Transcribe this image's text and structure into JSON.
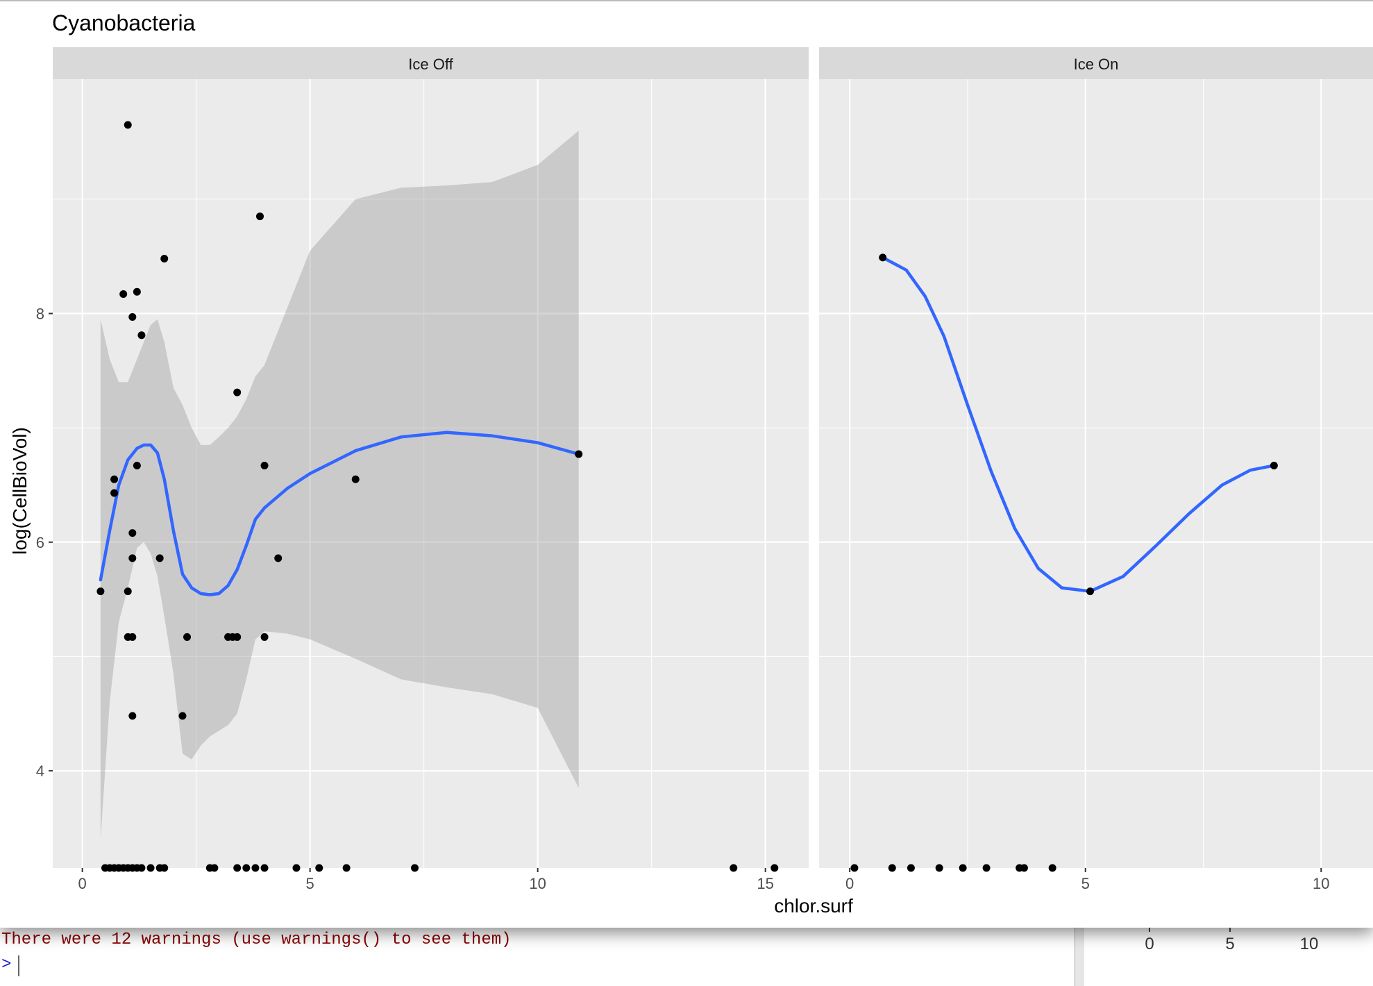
{
  "chart_data": {
    "type": "scatter",
    "title": "Cyanobacteria",
    "xlabel": "chlor.surf",
    "ylabel": "log(CellBioVol)",
    "ylim": [
      3.15,
      10.05
    ],
    "yticks": [
      4,
      6,
      8
    ],
    "xticks": [
      0,
      5,
      10,
      15
    ],
    "grid": true,
    "panels": [
      {
        "strip_label": "Ice Off",
        "xlim": [
          -0.65,
          15.95
        ],
        "xticks": [
          0,
          5,
          10,
          15
        ],
        "points": [
          [
            1.0,
            9.65
          ],
          [
            3.9,
            8.85
          ],
          [
            1.8,
            8.48
          ],
          [
            0.9,
            8.17
          ],
          [
            1.2,
            8.19
          ],
          [
            1.1,
            7.97
          ],
          [
            1.3,
            7.81
          ],
          [
            3.4,
            7.31
          ],
          [
            10.9,
            6.77
          ],
          [
            1.2,
            6.67
          ],
          [
            4.0,
            6.67
          ],
          [
            0.7,
            6.55
          ],
          [
            6.0,
            6.55
          ],
          [
            0.7,
            6.43
          ],
          [
            1.1,
            6.08
          ],
          [
            1.1,
            5.86
          ],
          [
            1.7,
            5.86
          ],
          [
            4.3,
            5.86
          ],
          [
            0.4,
            5.57
          ],
          [
            1.0,
            5.57
          ],
          [
            1.0,
            5.17
          ],
          [
            1.1,
            5.17
          ],
          [
            2.3,
            5.17
          ],
          [
            3.2,
            5.17
          ],
          [
            3.3,
            5.17
          ],
          [
            3.4,
            5.17
          ],
          [
            4.0,
            5.17
          ],
          [
            1.1,
            4.48
          ],
          [
            2.2,
            4.48
          ],
          [
            0.5,
            3.15
          ],
          [
            0.6,
            3.15
          ],
          [
            0.7,
            3.15
          ],
          [
            0.8,
            3.15
          ],
          [
            0.9,
            3.15
          ],
          [
            1.0,
            3.15
          ],
          [
            1.1,
            3.15
          ],
          [
            1.2,
            3.15
          ],
          [
            1.3,
            3.15
          ],
          [
            1.5,
            3.15
          ],
          [
            1.7,
            3.15
          ],
          [
            1.8,
            3.15
          ],
          [
            2.8,
            3.15
          ],
          [
            2.9,
            3.15
          ],
          [
            3.4,
            3.15
          ],
          [
            3.6,
            3.15
          ],
          [
            3.8,
            3.15
          ],
          [
            4.0,
            3.15
          ],
          [
            4.7,
            3.15
          ],
          [
            5.2,
            3.15
          ],
          [
            5.8,
            3.15
          ],
          [
            7.3,
            3.15
          ],
          [
            14.3,
            3.15
          ],
          [
            15.2,
            3.15
          ]
        ],
        "smooth": {
          "x": [
            0.4,
            0.6,
            0.8,
            1.0,
            1.2,
            1.35,
            1.5,
            1.65,
            1.8,
            2.0,
            2.2,
            2.4,
            2.6,
            2.8,
            3.0,
            3.2,
            3.4,
            3.6,
            3.8,
            4.0,
            4.5,
            5.0,
            6.0,
            7.0,
            8.0,
            9.0,
            10.0,
            10.9
          ],
          "y": [
            5.67,
            6.1,
            6.5,
            6.72,
            6.82,
            6.85,
            6.85,
            6.78,
            6.55,
            6.1,
            5.72,
            5.6,
            5.55,
            5.54,
            5.55,
            5.62,
            5.76,
            5.97,
            6.2,
            6.3,
            6.47,
            6.6,
            6.8,
            6.92,
            6.96,
            6.93,
            6.87,
            6.77
          ],
          "lower": [
            3.4,
            4.6,
            5.3,
            5.6,
            5.95,
            6.0,
            5.9,
            5.7,
            5.35,
            4.85,
            4.15,
            4.1,
            4.22,
            4.3,
            4.35,
            4.4,
            4.5,
            4.8,
            5.15,
            5.22,
            5.2,
            5.15,
            4.98,
            4.8,
            4.73,
            4.67,
            4.55,
            3.85
          ],
          "upper": [
            7.95,
            7.6,
            7.4,
            7.4,
            7.6,
            7.75,
            7.9,
            7.95,
            7.75,
            7.35,
            7.2,
            7.0,
            6.85,
            6.85,
            6.92,
            7.0,
            7.1,
            7.25,
            7.45,
            7.55,
            8.05,
            8.55,
            9.0,
            9.1,
            9.12,
            9.15,
            9.3,
            9.6
          ]
        }
      },
      {
        "strip_label": "Ice On",
        "xlim": [
          -0.65,
          11.1
        ],
        "xticks": [
          0,
          5,
          10
        ],
        "points": [
          [
            0.7,
            8.49
          ],
          [
            9.0,
            6.67
          ],
          [
            5.1,
            5.57
          ],
          [
            0.1,
            3.15
          ],
          [
            0.9,
            3.15
          ],
          [
            1.3,
            3.15
          ],
          [
            1.9,
            3.15
          ],
          [
            2.4,
            3.15
          ],
          [
            2.9,
            3.15
          ],
          [
            3.6,
            3.15
          ],
          [
            3.7,
            3.15
          ],
          [
            4.3,
            3.15
          ]
        ],
        "smooth": {
          "x": [
            0.7,
            1.2,
            1.6,
            2.0,
            2.5,
            3.0,
            3.5,
            4.0,
            4.5,
            5.1,
            5.8,
            6.5,
            7.2,
            7.9,
            8.5,
            9.0
          ],
          "y": [
            8.49,
            8.38,
            8.15,
            7.8,
            7.2,
            6.62,
            6.12,
            5.77,
            5.6,
            5.57,
            5.7,
            5.97,
            6.25,
            6.5,
            6.63,
            6.67
          ]
        }
      }
    ]
  },
  "console": {
    "warning_text": "There were 12 warnings (use warnings() to see them)",
    "prompt": ">"
  },
  "background_plot": {
    "tick_labels": [
      "0",
      "5",
      "10"
    ]
  },
  "colors": {
    "panel_bg": "#ebebeb",
    "strip_bg": "#d9d9d9",
    "grid_major": "#ffffff",
    "smooth_line": "#3366ff",
    "ribbon": "#999999",
    "point": "#000000"
  }
}
